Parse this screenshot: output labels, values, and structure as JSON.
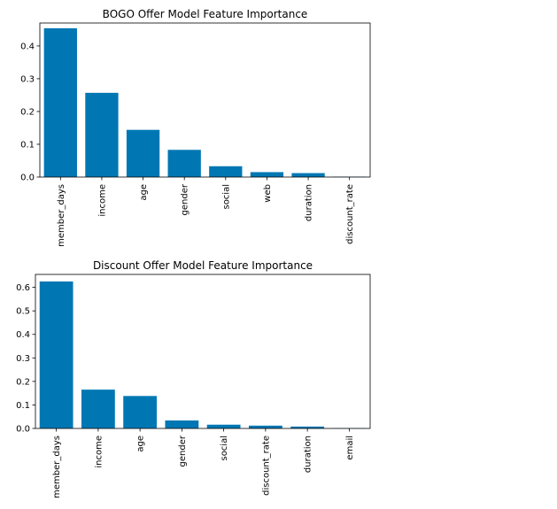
{
  "chart_data": [
    {
      "type": "bar",
      "title": "BOGO Offer Model Feature Importance",
      "xlabel": "",
      "ylabel": "",
      "categories": [
        "member_days",
        "income",
        "age",
        "gender",
        "social",
        "web",
        "duration",
        "discount_rate"
      ],
      "values": [
        0.454,
        0.257,
        0.144,
        0.083,
        0.033,
        0.015,
        0.012,
        0.001
      ],
      "ylim": [
        0,
        0.47
      ],
      "yticks": [
        "0.0",
        "0.1",
        "0.2",
        "0.3",
        "0.4"
      ],
      "bar_color": "#0077b3",
      "grid": false
    },
    {
      "type": "bar",
      "title": "Discount Offer Model Feature Importance",
      "xlabel": "",
      "ylabel": "",
      "categories": [
        "member_days",
        "income",
        "age",
        "gender",
        "social",
        "discount_rate",
        "duration",
        "email"
      ],
      "values": [
        0.625,
        0.165,
        0.138,
        0.034,
        0.016,
        0.012,
        0.008,
        0.001
      ],
      "ylim": [
        0,
        0.655
      ],
      "yticks": [
        "0.0",
        "0.1",
        "0.2",
        "0.3",
        "0.4",
        "0.5",
        "0.6"
      ],
      "bar_color": "#0077b3",
      "grid": false
    }
  ]
}
